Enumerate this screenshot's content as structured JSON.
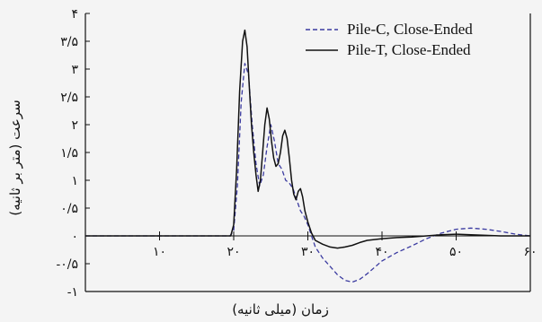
{
  "chart_data": {
    "type": "line",
    "xlabel": "زمان (میلی ثانیه)",
    "ylabel": "سرعت (متر بر ثانیه)",
    "xlim": [
      0,
      60
    ],
    "ylim": [
      -1,
      4
    ],
    "xticks": [
      10,
      20,
      30,
      40,
      50,
      60
    ],
    "xtick_labels": [
      "۱۰",
      "۲۰",
      "۳۰",
      "۴۰",
      "۵۰",
      "۶۰"
    ],
    "yticks": [
      -1,
      -0.5,
      0,
      0.5,
      1,
      1.5,
      2,
      2.5,
      3,
      3.5,
      4
    ],
    "ytick_labels": [
      "-۱",
      "-۰/۵",
      "۰",
      "۰/۵",
      "۱",
      "۱/۵",
      "۲",
      "۲/۵",
      "۳",
      "۳/۵",
      "۴"
    ],
    "legend_position": "top-right",
    "series": [
      {
        "name": "Pile-C, Close-Ended",
        "style": "dashed",
        "color": "#3a3aa0",
        "points": [
          [
            0,
            0
          ],
          [
            19.5,
            0
          ],
          [
            20,
            0.1
          ],
          [
            20.5,
            0.9
          ],
          [
            21,
            2.4
          ],
          [
            21.5,
            3.1
          ],
          [
            22,
            2.9
          ],
          [
            22.5,
            2.0
          ],
          [
            23,
            1.3
          ],
          [
            23.5,
            0.9
          ],
          [
            24,
            1.1
          ],
          [
            24.5,
            1.6
          ],
          [
            25,
            2.0
          ],
          [
            25.5,
            1.7
          ],
          [
            26,
            1.3
          ],
          [
            26.5,
            1.2
          ],
          [
            27,
            1.0
          ],
          [
            27.5,
            0.95
          ],
          [
            28,
            0.85
          ],
          [
            28.5,
            0.65
          ],
          [
            29,
            0.45
          ],
          [
            29.5,
            0.35
          ],
          [
            30,
            0.2
          ],
          [
            30.5,
            0.0
          ],
          [
            31,
            -0.2
          ],
          [
            32,
            -0.4
          ],
          [
            33,
            -0.55
          ],
          [
            34,
            -0.7
          ],
          [
            35,
            -0.8
          ],
          [
            36,
            -0.83
          ],
          [
            37,
            -0.78
          ],
          [
            38,
            -0.68
          ],
          [
            40,
            -0.45
          ],
          [
            42,
            -0.3
          ],
          [
            44,
            -0.18
          ],
          [
            46,
            -0.05
          ],
          [
            48,
            0.05
          ],
          [
            50,
            0.12
          ],
          [
            52,
            0.14
          ],
          [
            54,
            0.12
          ],
          [
            56,
            0.08
          ],
          [
            58,
            0.03
          ],
          [
            60,
            0.0
          ]
        ]
      },
      {
        "name": "Pile-T, Close-Ended",
        "style": "solid",
        "color": "#111111",
        "points": [
          [
            0,
            0
          ],
          [
            19.6,
            0
          ],
          [
            20,
            0.2
          ],
          [
            20.4,
            1.2
          ],
          [
            20.8,
            2.6
          ],
          [
            21.2,
            3.5
          ],
          [
            21.5,
            3.7
          ],
          [
            21.8,
            3.4
          ],
          [
            22.1,
            2.7
          ],
          [
            22.4,
            2.0
          ],
          [
            22.7,
            1.5
          ],
          [
            23,
            1.1
          ],
          [
            23.3,
            0.8
          ],
          [
            23.6,
            1.0
          ],
          [
            23.9,
            1.5
          ],
          [
            24.2,
            2.0
          ],
          [
            24.5,
            2.3
          ],
          [
            24.8,
            2.1
          ],
          [
            25.1,
            1.7
          ],
          [
            25.4,
            1.4
          ],
          [
            25.7,
            1.25
          ],
          [
            26,
            1.3
          ],
          [
            26.3,
            1.5
          ],
          [
            26.6,
            1.8
          ],
          [
            26.9,
            1.9
          ],
          [
            27.2,
            1.75
          ],
          [
            27.5,
            1.4
          ],
          [
            27.8,
            1.0
          ],
          [
            28.1,
            0.75
          ],
          [
            28.4,
            0.65
          ],
          [
            28.7,
            0.8
          ],
          [
            29,
            0.85
          ],
          [
            29.3,
            0.7
          ],
          [
            29.6,
            0.45
          ],
          [
            30,
            0.25
          ],
          [
            30.5,
            0.05
          ],
          [
            31,
            -0.08
          ],
          [
            32,
            -0.15
          ],
          [
            33,
            -0.2
          ],
          [
            34,
            -0.22
          ],
          [
            35,
            -0.2
          ],
          [
            36,
            -0.17
          ],
          [
            37,
            -0.12
          ],
          [
            38,
            -0.08
          ],
          [
            40,
            -0.05
          ],
          [
            42,
            -0.03
          ],
          [
            44,
            -0.02
          ],
          [
            46,
            0.0
          ],
          [
            48,
            0.02
          ],
          [
            50,
            0.03
          ],
          [
            52,
            0.02
          ],
          [
            54,
            0.01
          ],
          [
            56,
            0.0
          ],
          [
            58,
            0.0
          ],
          [
            60,
            0.0
          ]
        ]
      }
    ]
  }
}
